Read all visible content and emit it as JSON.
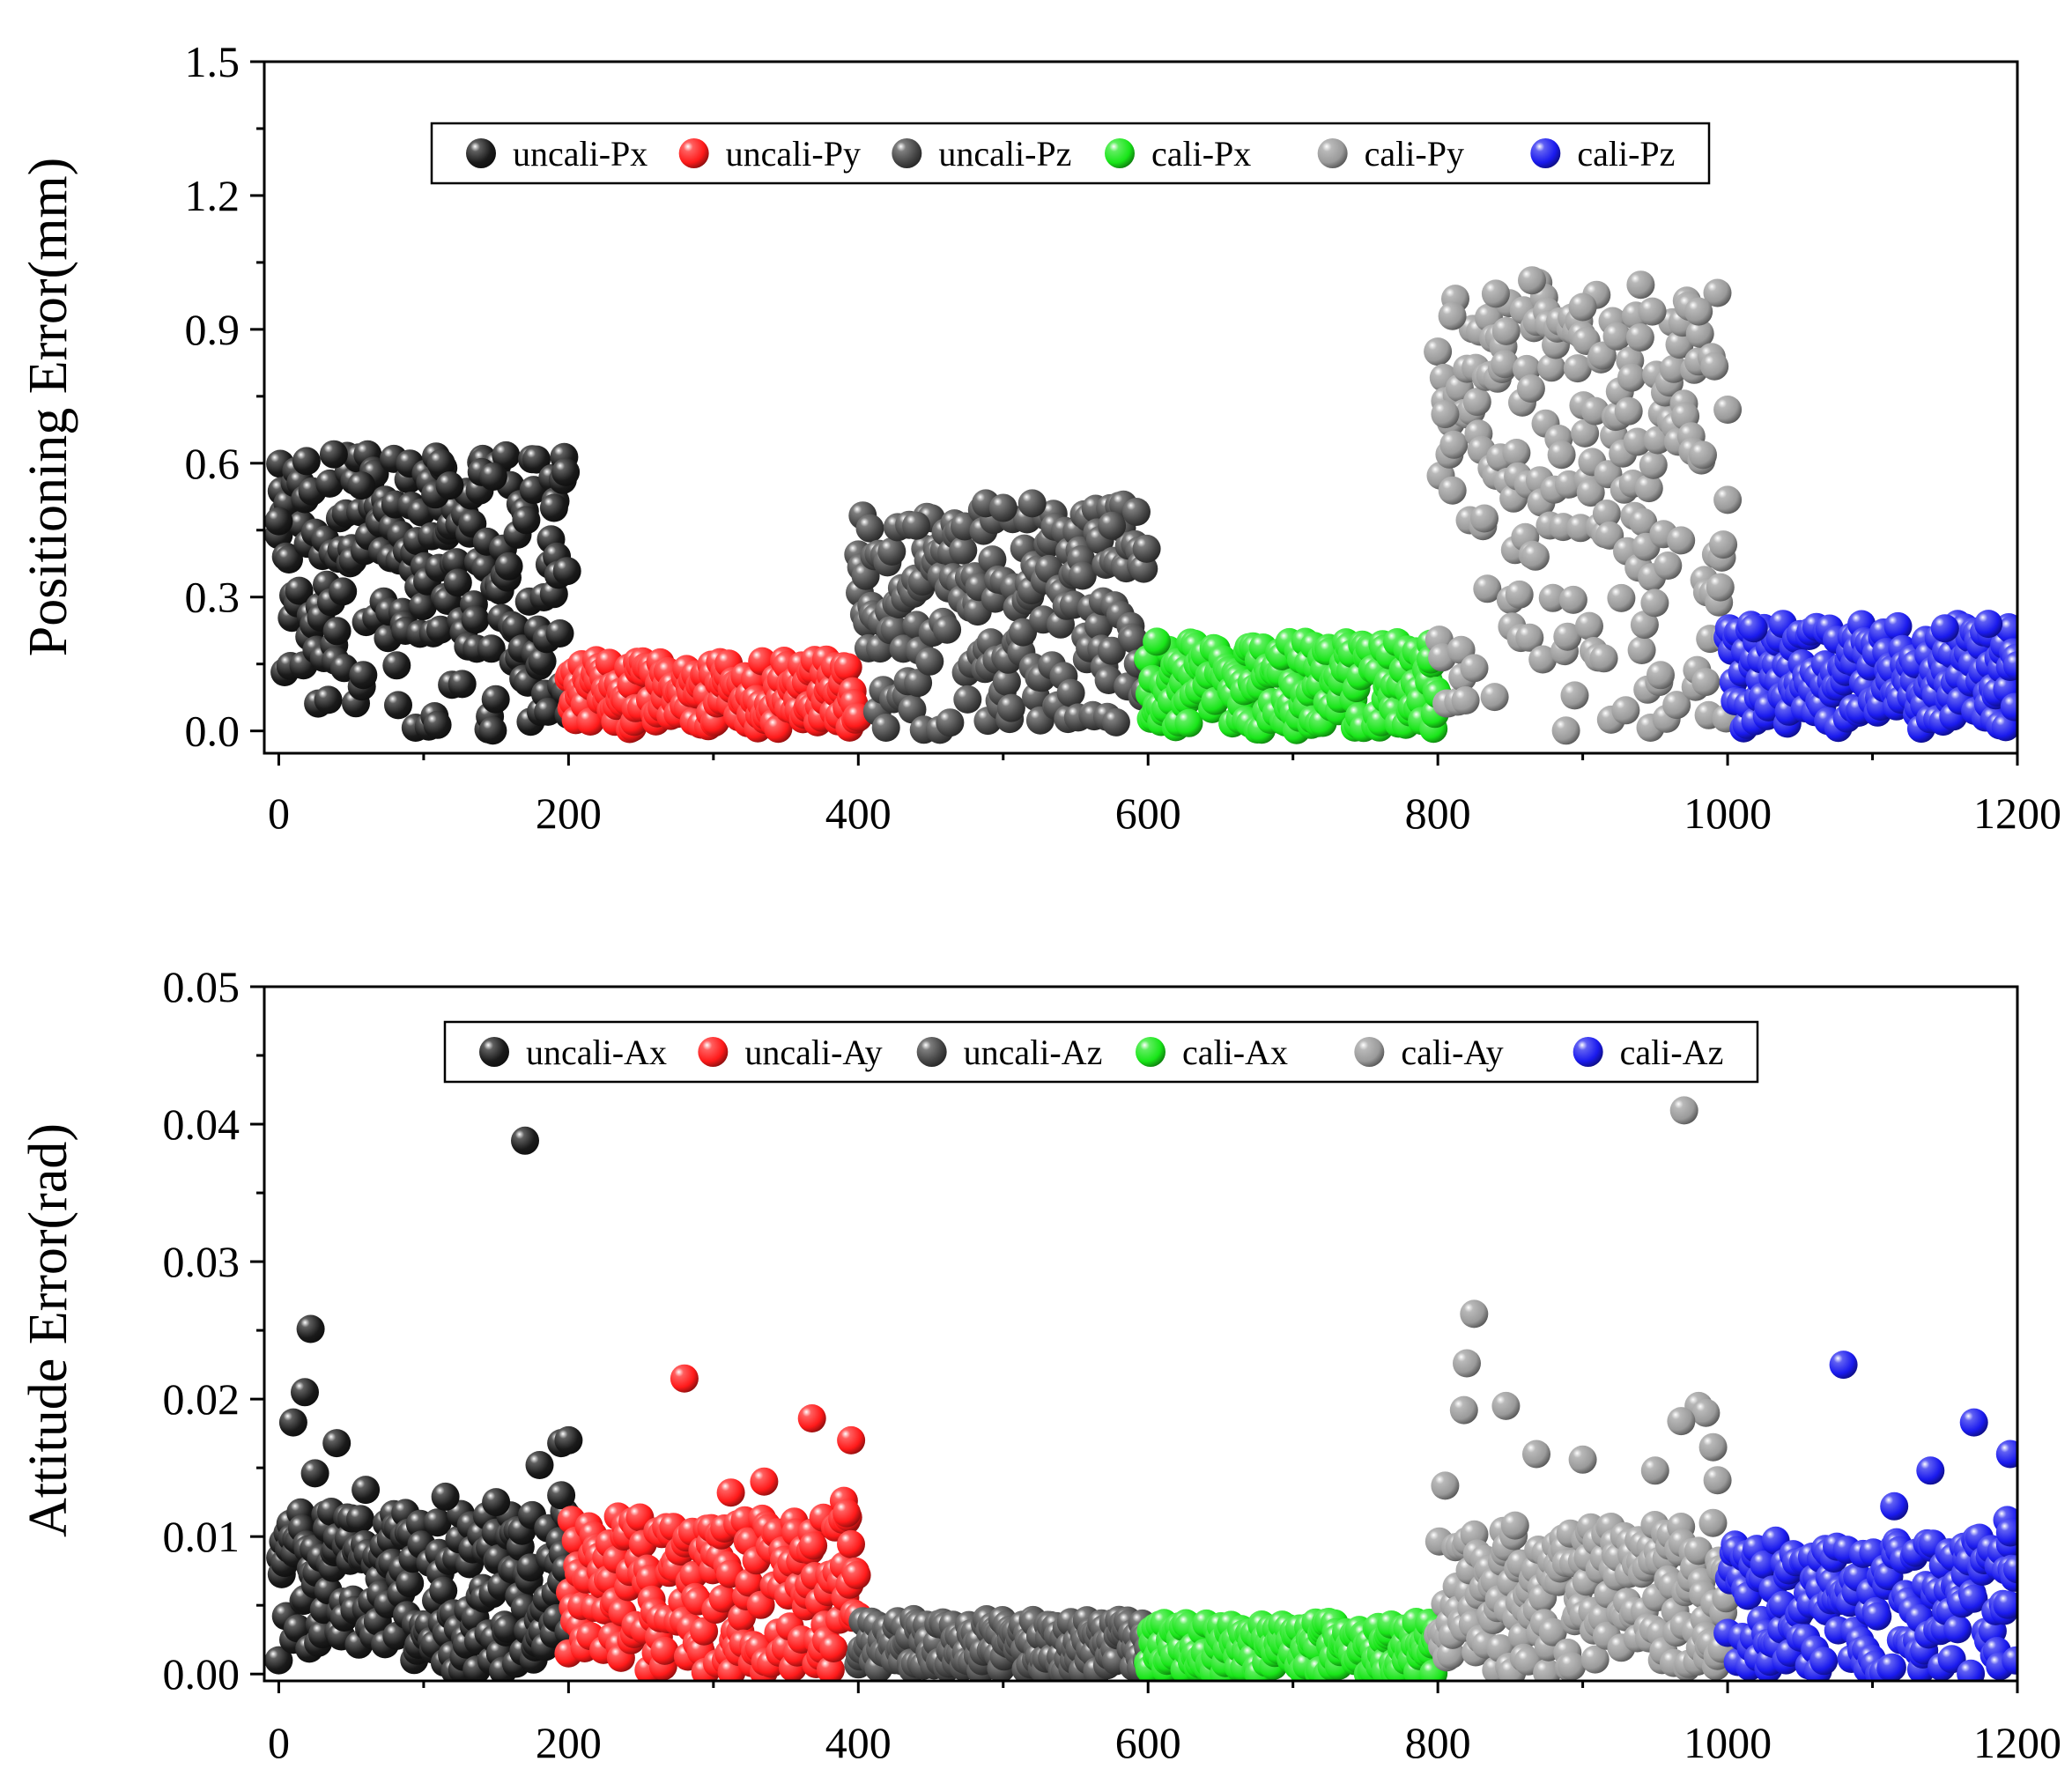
{
  "chart_data": [
    {
      "type": "scatter",
      "title": "",
      "xlabel": "",
      "ylabel": "Positioning Error(mm)",
      "xlim": [
        -10,
        1200
      ],
      "ylim": [
        -0.05,
        1.5
      ],
      "x_ticks": [
        0,
        200,
        400,
        600,
        800,
        1000,
        1200
      ],
      "y_ticks": [
        0.0,
        0.3,
        0.6,
        0.9,
        1.2,
        1.5
      ],
      "x_tick_labels": [
        "0",
        "200",
        "400",
        "600",
        "800",
        "1000",
        "1200"
      ],
      "y_tick_labels": [
        "0.0",
        "0.3",
        "0.6",
        "0.9",
        "1.2",
        "1.5"
      ],
      "legend_position": "top",
      "grid": false,
      "series": [
        {
          "name": "uncali-Px",
          "color": "#1a1a1a",
          "x_range": [
            0,
            200
          ],
          "count": 200,
          "y_max": 0.62,
          "outliers": [
            [
              0,
              0.47
            ],
            [
              38,
              0.62
            ],
            [
              57,
              0.55
            ],
            [
              108,
              0.53
            ],
            [
              112,
              0.6
            ],
            [
              118,
              0.55
            ],
            [
              140,
              0.58
            ],
            [
              148,
              0.57
            ],
            [
              198,
              0.58
            ],
            [
              190,
              0.5
            ]
          ]
        },
        {
          "name": "uncali-Py",
          "color": "#ff1a1a",
          "x_range": [
            200,
            400
          ],
          "count": 200,
          "y_max": 0.16,
          "outliers": []
        },
        {
          "name": "uncali-Pz",
          "color": "#454545",
          "x_range": [
            400,
            600
          ],
          "count": 200,
          "y_max": 0.51,
          "outliers": [
            [
              440,
              0.46
            ],
            [
              488,
              0.51
            ],
            [
              500,
              0.5
            ],
            [
              520,
              0.51
            ],
            [
              575,
              0.46
            ]
          ]
        },
        {
          "name": "cali-Px",
          "color": "#19e619",
          "x_range": [
            600,
            800
          ],
          "count": 200,
          "y_max": 0.2,
          "outliers": [
            [
              606,
              0.2
            ],
            [
              795,
              0.16
            ]
          ]
        },
        {
          "name": "cali-Py",
          "color": "#9a9a9a",
          "x_range": [
            800,
            1000
          ],
          "count": 200,
          "y_max": 1.01,
          "outliers": [
            [
              810,
              0.93
            ],
            [
              840,
              0.98
            ],
            [
              865,
              1.01
            ],
            [
              900,
              0.95
            ],
            [
              940,
              1.0
            ],
            [
              948,
              0.94
            ],
            [
              980,
              0.94
            ],
            [
              1000,
              0.72
            ],
            [
              805,
              0.71
            ]
          ]
        },
        {
          "name": "cali-Pz",
          "color": "#1a1aee",
          "x_range": [
            1000,
            1200
          ],
          "count": 200,
          "y_max": 0.24,
          "outliers": [
            [
              1018,
              0.23
            ],
            [
              1180,
              0.24
            ],
            [
              1150,
              0.23
            ]
          ]
        }
      ]
    },
    {
      "type": "scatter",
      "title": "",
      "xlabel": "",
      "ylabel": "Attitude Error(rad)",
      "xlim": [
        -10,
        1200
      ],
      "ylim": [
        -0.0005,
        0.05
      ],
      "x_ticks": [
        0,
        200,
        400,
        600,
        800,
        1000,
        1200
      ],
      "y_ticks": [
        0.0,
        0.01,
        0.02,
        0.03,
        0.04,
        0.05
      ],
      "x_tick_labels": [
        "0",
        "200",
        "400",
        "600",
        "800",
        "1000",
        "1200"
      ],
      "y_tick_labels": [
        "0.00",
        "0.01",
        "0.02",
        "0.03",
        "0.04",
        "0.05"
      ],
      "legend_position": "top",
      "grid": false,
      "series": [
        {
          "name": "uncali-Ax",
          "color": "#1a1a1a",
          "x_range": [
            0,
            200
          ],
          "count": 200,
          "y_max": 0.012,
          "outliers": [
            [
              170,
              0.0388
            ],
            [
              22,
              0.0251
            ],
            [
              18,
              0.0205
            ],
            [
              10,
              0.0183
            ],
            [
              40,
              0.0168
            ],
            [
              25,
              0.0146
            ],
            [
              180,
              0.0152
            ],
            [
              195,
              0.0168
            ],
            [
              200,
              0.017
            ],
            [
              60,
              0.0134
            ],
            [
              115,
              0.0129
            ],
            [
              150,
              0.0125
            ],
            [
              195,
              0.013
            ]
          ]
        },
        {
          "name": "uncali-Ay",
          "color": "#ff1a1a",
          "x_range": [
            200,
            400
          ],
          "count": 200,
          "y_max": 0.0115,
          "outliers": [
            [
              280,
              0.0215
            ],
            [
              368,
              0.0186
            ],
            [
              395,
              0.017
            ],
            [
              335,
              0.014
            ],
            [
              312,
              0.0132
            ],
            [
              390,
              0.0126
            ],
            [
              392,
              0.0117
            ]
          ]
        },
        {
          "name": "uncali-Az",
          "color": "#454545",
          "x_range": [
            400,
            600
          ],
          "count": 200,
          "y_max": 0.004,
          "outliers": []
        },
        {
          "name": "cali-Ax",
          "color": "#19e619",
          "x_range": [
            600,
            800
          ],
          "count": 200,
          "y_max": 0.0038,
          "outliers": []
        },
        {
          "name": "cali-Ay",
          "color": "#9a9a9a",
          "x_range": [
            800,
            1000
          ],
          "count": 200,
          "y_max": 0.011,
          "outliers": [
            [
              970,
              0.041
            ],
            [
              825,
              0.0262
            ],
            [
              820,
              0.0226
            ],
            [
              818,
              0.0192
            ],
            [
              847,
              0.0195
            ],
            [
              980,
              0.0195
            ],
            [
              985,
              0.019
            ],
            [
              968,
              0.0184
            ],
            [
              990,
              0.0165
            ],
            [
              868,
              0.016
            ],
            [
              900,
              0.0156
            ],
            [
              950,
              0.0148
            ],
            [
              993,
              0.0141
            ],
            [
              805,
              0.0137
            ]
          ]
        },
        {
          "name": "cali-Az",
          "color": "#1a1aee",
          "x_range": [
            1000,
            1200
          ],
          "count": 200,
          "y_max": 0.01,
          "outliers": [
            [
              1080,
              0.0225
            ],
            [
              1170,
              0.0183
            ],
            [
              1195,
              0.016
            ],
            [
              1140,
              0.0148
            ],
            [
              1115,
              0.0122
            ],
            [
              1193,
              0.0112
            ],
            [
              1195,
              0.0103
            ]
          ]
        }
      ]
    }
  ]
}
